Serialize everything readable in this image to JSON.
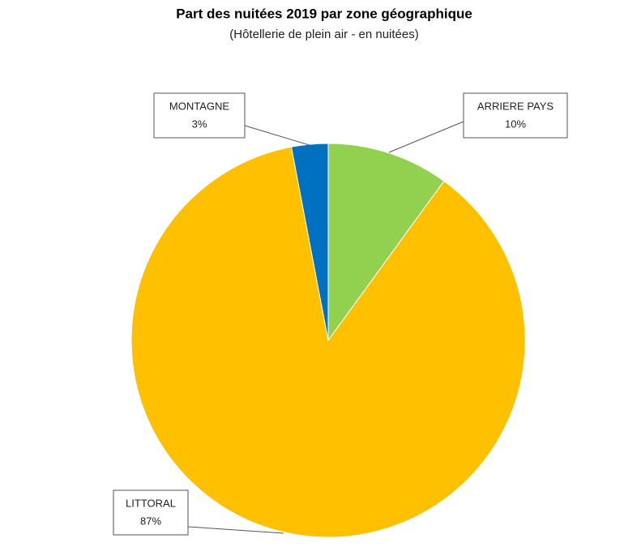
{
  "chart_data": {
    "type": "pie",
    "title": "Part des nuitées 2019 par zone géographique",
    "subtitle": "(Hôtellerie de plein air - en nuitées)",
    "categories": [
      "ARRIERE PAYS",
      "LITTORAL",
      "MONTAGNE"
    ],
    "values": [
      10,
      87,
      3
    ],
    "value_labels": [
      "10%",
      "87%",
      "3%"
    ],
    "colors": [
      "#92d050",
      "#ffc000",
      "#0070c0"
    ]
  }
}
